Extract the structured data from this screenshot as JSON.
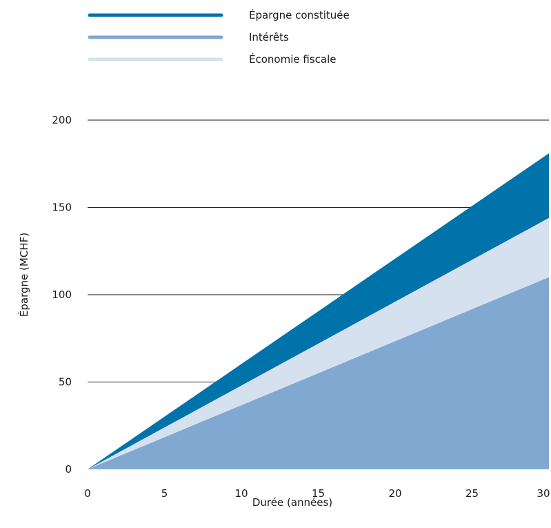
{
  "chart_data": {
    "type": "area",
    "stacked": true,
    "x": [
      0,
      30
    ],
    "xticks": [
      0,
      5,
      10,
      15,
      20,
      25,
      30
    ],
    "yticks": [
      0,
      50,
      100,
      150,
      200
    ],
    "xlim": [
      0,
      30
    ],
    "ylim": [
      0,
      200
    ],
    "xlabel": "Durée (années)",
    "ylabel": "Épargne (MCHF)",
    "grid": "horizontal",
    "legend_position": "top",
    "series": [
      {
        "name": "Épargne constituée",
        "color": "#0073ab",
        "cumulative_top": [
          0,
          181
        ],
        "draw_order": 1
      },
      {
        "name": "Économie fiscale",
        "color": "#d5e1ee",
        "cumulative_top": [
          0,
          144
        ],
        "draw_order": 2
      },
      {
        "name": "Intérêts",
        "color": "#80a8d0",
        "cumulative_top": [
          0,
          110
        ],
        "draw_order": 3
      }
    ],
    "legend": [
      {
        "name": "Épargne constituée",
        "color": "#0073ab"
      },
      {
        "name": "Intérêts",
        "color": "#80a8d0"
      },
      {
        "name": "Économie fiscale",
        "color": "#d5e1ee"
      }
    ]
  }
}
